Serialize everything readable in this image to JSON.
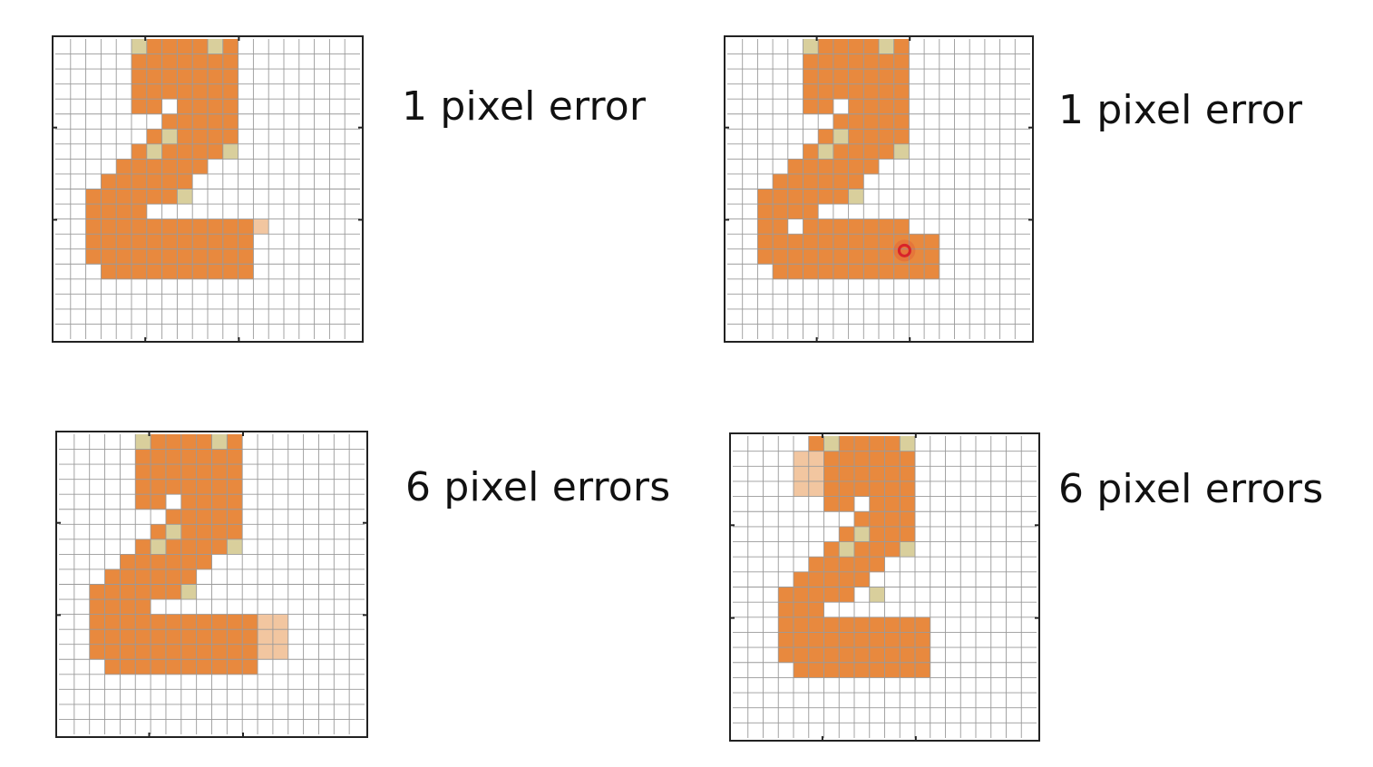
{
  "colors": {
    "filled": "#e8893e",
    "tan": "#d9cf9c",
    "error": "#f2c6a0",
    "grid_line": "#9a9a9a",
    "frame": "#222222",
    "cursor": "#d8232a"
  },
  "panels": [
    {
      "id": "top-left",
      "caption": "1 pixel error",
      "cols": 20,
      "rows": 20,
      "runs": [
        [
          0,
          5,
          11
        ],
        [
          1,
          5,
          11
        ],
        [
          2,
          5,
          11
        ],
        [
          3,
          5,
          11
        ],
        [
          4,
          5,
          6
        ],
        [
          4,
          8,
          11
        ],
        [
          5,
          7,
          11
        ],
        [
          6,
          6,
          11
        ],
        [
          7,
          5,
          10
        ],
        [
          8,
          4,
          9
        ],
        [
          9,
          3,
          8
        ],
        [
          10,
          2,
          7
        ],
        [
          11,
          2,
          5
        ],
        [
          12,
          2,
          12
        ],
        [
          13,
          2,
          12
        ],
        [
          14,
          2,
          12
        ],
        [
          15,
          3,
          12
        ]
      ],
      "tan_cells": [
        [
          0,
          5
        ],
        [
          0,
          10
        ],
        [
          6,
          7
        ],
        [
          7,
          6
        ],
        [
          7,
          11
        ],
        [
          10,
          8
        ]
      ],
      "error_cells": [
        [
          12,
          13
        ]
      ],
      "error_blocks": [],
      "cursor": null
    },
    {
      "id": "top-right",
      "caption": "1 pixel error",
      "cols": 20,
      "rows": 20,
      "runs": [
        [
          0,
          5,
          11
        ],
        [
          1,
          5,
          11
        ],
        [
          2,
          5,
          11
        ],
        [
          3,
          5,
          11
        ],
        [
          4,
          5,
          6
        ],
        [
          4,
          8,
          11
        ],
        [
          5,
          7,
          11
        ],
        [
          6,
          6,
          11
        ],
        [
          7,
          5,
          10
        ],
        [
          8,
          4,
          9
        ],
        [
          9,
          3,
          8
        ],
        [
          10,
          2,
          7
        ],
        [
          11,
          2,
          5
        ],
        [
          12,
          2,
          11
        ],
        [
          13,
          2,
          13
        ],
        [
          14,
          2,
          13
        ],
        [
          15,
          3,
          13
        ]
      ],
      "tan_cells": [
        [
          0,
          5
        ],
        [
          0,
          10
        ],
        [
          6,
          7
        ],
        [
          7,
          6
        ],
        [
          7,
          11
        ],
        [
          10,
          8
        ]
      ],
      "hole_cells": [
        [
          12,
          4
        ]
      ],
      "error_cells": [],
      "error_blocks": [],
      "cursor": [
        13.6,
        11.2
      ]
    },
    {
      "id": "bottom-left",
      "caption": "6 pixel errors",
      "cols": 20,
      "rows": 20,
      "runs": [
        [
          0,
          5,
          11
        ],
        [
          1,
          5,
          11
        ],
        [
          2,
          5,
          11
        ],
        [
          3,
          5,
          11
        ],
        [
          4,
          5,
          6
        ],
        [
          4,
          8,
          11
        ],
        [
          5,
          7,
          11
        ],
        [
          6,
          6,
          11
        ],
        [
          7,
          5,
          10
        ],
        [
          8,
          4,
          9
        ],
        [
          9,
          3,
          8
        ],
        [
          10,
          2,
          7
        ],
        [
          11,
          2,
          5
        ],
        [
          12,
          2,
          12
        ],
        [
          13,
          2,
          12
        ],
        [
          14,
          2,
          12
        ],
        [
          15,
          3,
          12
        ]
      ],
      "tan_cells": [
        [
          0,
          5
        ],
        [
          0,
          10
        ],
        [
          6,
          7
        ],
        [
          7,
          6
        ],
        [
          7,
          11
        ],
        [
          10,
          8
        ]
      ],
      "error_cells": [],
      "error_blocks": [
        [
          12,
          13,
          3,
          2
        ]
      ],
      "cursor": null
    },
    {
      "id": "bottom-right",
      "caption": "6 pixel errors",
      "cols": 20,
      "rows": 20,
      "runs": [
        [
          0,
          5,
          11
        ],
        [
          1,
          5,
          11
        ],
        [
          2,
          5,
          11
        ],
        [
          3,
          5,
          11
        ],
        [
          4,
          6,
          7
        ],
        [
          4,
          9,
          11
        ],
        [
          5,
          8,
          11
        ],
        [
          6,
          7,
          11
        ],
        [
          7,
          6,
          10
        ],
        [
          8,
          5,
          9
        ],
        [
          9,
          4,
          8
        ],
        [
          10,
          3,
          7
        ],
        [
          11,
          3,
          5
        ],
        [
          12,
          3,
          12
        ],
        [
          13,
          3,
          12
        ],
        [
          14,
          3,
          12
        ],
        [
          15,
          4,
          12
        ]
      ],
      "tan_cells": [
        [
          0,
          6
        ],
        [
          0,
          11
        ],
        [
          6,
          8
        ],
        [
          7,
          7
        ],
        [
          7,
          11
        ],
        [
          10,
          9
        ]
      ],
      "error_cells": [],
      "error_blocks": [
        [
          1,
          4,
          3,
          2
        ]
      ],
      "cursor": null
    }
  ]
}
